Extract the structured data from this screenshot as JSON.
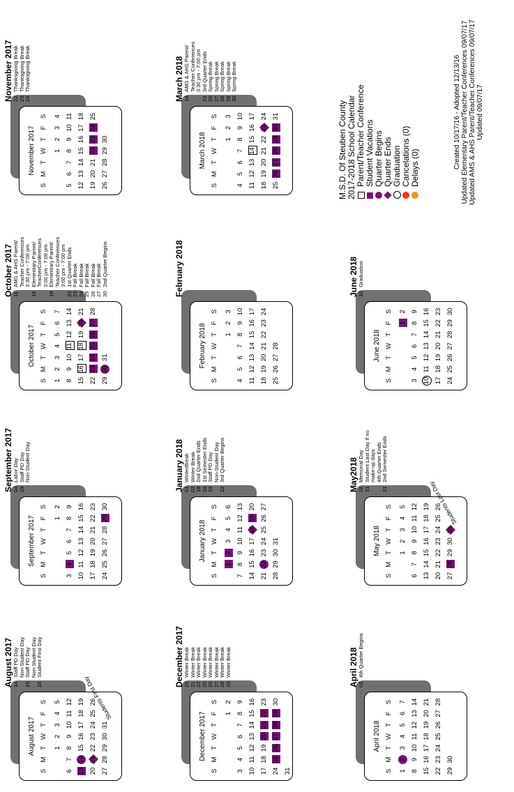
{
  "calendar": {
    "header": [
      "S",
      "M",
      "T",
      "W",
      "T",
      "F",
      "S"
    ],
    "months": [
      {
        "title": "August 2017",
        "event_title": "August 2017",
        "start": 2,
        "days": 31,
        "marks": {
          "13": "sq",
          "14": "ci",
          "21": "dm"
        },
        "rot_label": "Students First Day",
        "events": [
          {
            "d": "14",
            "t": "Staff PD Day"
          },
          {
            "d": "",
            "t": "Non-Student Day"
          },
          {
            "d": "15",
            "t": "Staff PD Day"
          },
          {
            "d": "",
            "t": "Non-Student Day"
          },
          {
            "d": "16",
            "t": "Student First Day"
          }
        ]
      },
      {
        "title": "September 2017",
        "event_title": "September 2017",
        "start": 5,
        "days": 30,
        "marks": {
          "4": "sq",
          "29": "sq"
        },
        "events": [
          {
            "d": "04",
            "t": "Labor Day"
          },
          {
            "d": "29",
            "t": "Staff PD Day"
          },
          {
            "d": "",
            "t": "Non-Student Day"
          }
        ]
      },
      {
        "title": "October 2017",
        "event_title": "October 2017",
        "start": 0,
        "days": 31,
        "marks": {
          "11": "bx",
          "16": "bx",
          "18": "bx",
          "20": "dm",
          "23": "sq",
          "24": "sq",
          "25": "sq",
          "26": "sq",
          "27": "sq",
          "30": "ci"
        },
        "events": [
          {
            "d": "11",
            "t": "AMS & AHS Parent/"
          },
          {
            "d": "",
            "t": "Teacher Conferences"
          },
          {
            "d": "",
            "t": "3:30 pm - 7:00 pm"
          },
          {
            "d": "16",
            "t": "Elementary Parent/"
          },
          {
            "d": "",
            "t": "TeacherConferences"
          },
          {
            "d": "",
            "t": "3:00 pm - 7:00 pm"
          },
          {
            "d": "18",
            "t": "Elementary Parent/"
          },
          {
            "d": "",
            "t": "Teacher Conferences"
          },
          {
            "d": "",
            "t": "3:00 pm - 7:00 pm"
          },
          {
            "d": "20",
            "t": "1st Quarter Ends"
          },
          {
            "d": "23",
            "t": "Fall Break"
          },
          {
            "d": "24",
            "t": "Fall Break"
          },
          {
            "d": "25",
            "t": "Fall Break"
          },
          {
            "d": "26",
            "t": "Fall Break"
          },
          {
            "d": "27",
            "t": "Fall Break"
          },
          {
            "d": "30",
            "t": "2nd Quarter Begins"
          }
        ]
      },
      {
        "title": "November 2017",
        "event_title": "November 2017",
        "start": 3,
        "days": 30,
        "marks": {
          "22": "sq",
          "23": "sq",
          "24": "sq"
        },
        "events": [
          {
            "d": "22",
            "t": "Thanksgiving Break"
          },
          {
            "d": "23",
            "t": "Thanksgiving Break"
          },
          {
            "d": "24",
            "t": "Thanksgiving Break"
          }
        ]
      },
      {
        "title": "December 2017",
        "event_title": "December 2017",
        "start": 5,
        "days": 31,
        "marks": {
          "20": "sq",
          "21": "sq",
          "22": "sq",
          "25": "sq",
          "26": "sq",
          "27": "sq",
          "28": "sq",
          "29": "sq"
        },
        "events": [
          {
            "d": "20",
            "t": "Winter Break"
          },
          {
            "d": "21",
            "t": "Winter Break"
          },
          {
            "d": "22",
            "t": "Winter Break"
          },
          {
            "d": "25",
            "t": "Winter Break"
          },
          {
            "d": "26",
            "t": "Winter Break"
          },
          {
            "d": "27",
            "t": "Winter Break"
          },
          {
            "d": "28",
            "t": "Winter Break"
          },
          {
            "d": "29",
            "t": "Winter Break"
          }
        ]
      },
      {
        "title": "January 2018",
        "event_title": "January 2018",
        "start": 1,
        "days": 31,
        "marks": {
          "1": "sq",
          "2": "sq",
          "18": "dm",
          "19": "sq",
          "22": "ci"
        },
        "events": [
          {
            "d": "01",
            "t": "WinterBreak"
          },
          {
            "d": "02",
            "t": "Winter Break"
          },
          {
            "d": "18",
            "t": "2nd Quarter Ends"
          },
          {
            "d": "18",
            "t": "1st Semester Ends"
          },
          {
            "d": "19",
            "t": "Staff PD Day"
          },
          {
            "d": "",
            "t": "Non-Student Day"
          },
          {
            "d": "22",
            "t": "3rd Quarter Begins"
          }
        ]
      },
      {
        "title": "February 2018",
        "event_title": "February 2018",
        "start": 4,
        "days": 28,
        "marks": {},
        "events": []
      },
      {
        "title": "March 2018",
        "event_title": "March 2018",
        "start": 4,
        "days": 31,
        "marks": {
          "14": "bx",
          "23": "dm",
          "26": "sq",
          "27": "sq",
          "28": "sq",
          "29": "sq",
          "30": "sq"
        },
        "events": [
          {
            "d": "14",
            "t": "AMS & AHS Parent/"
          },
          {
            "d": "",
            "t": "Teacher Conferences"
          },
          {
            "d": "",
            "t": "3:30 pm - 7:00 pm"
          },
          {
            "d": "23",
            "t": "3rd Quarter Ends"
          },
          {
            "d": "26",
            "t": "Spring Break"
          },
          {
            "d": "27",
            "t": "Spring Break"
          },
          {
            "d": "28",
            "t": "Spring Break"
          },
          {
            "d": "29",
            "t": "Spring Break"
          },
          {
            "d": "30",
            "t": "Spring Break"
          }
        ]
      },
      {
        "title": "April 2018",
        "event_title": "April 2018",
        "start": 0,
        "days": 30,
        "marks": {
          "2": "ci"
        },
        "events": [
          {
            "d": "02",
            "t": "4th Quarter Begins"
          }
        ]
      },
      {
        "title": "May 2018",
        "event_title": "May2018",
        "start": 2,
        "days": 31,
        "marks": {
          "28": "sq",
          "31": "dm"
        },
        "rot_label": "Students Last Day",
        "events": [
          {
            "d": "28",
            "t": "Memorial Day"
          },
          {
            "d": "31",
            "t": "Student Last Day if no"
          },
          {
            "d": "",
            "t": "make-up days"
          },
          {
            "d": "",
            "t": "4th Quarter Ends"
          },
          {
            "d": "31",
            "t": "2nd Semester Ends"
          }
        ]
      },
      {
        "title": "June 2018",
        "event_title": "June 2018",
        "start": 5,
        "days": 30,
        "marks": {
          "1": "sq",
          "10": "oc"
        },
        "events": [
          {
            "d": "10",
            "t": "Graduation"
          }
        ]
      }
    ]
  },
  "legend": {
    "title1": "M.S.D. Of Steuben County",
    "title2": "2017-2018 School Calendar",
    "items": [
      {
        "syms": [
          "bx"
        ],
        "label": "Parent/Teacher Conference"
      },
      {
        "syms": [
          "sq"
        ],
        "label": "Student Vacations"
      },
      {
        "syms": [
          "ci"
        ],
        "label": "Quarter Begins"
      },
      {
        "syms": [
          "dm"
        ],
        "label": "Quarter Ends"
      },
      {
        "syms": [
          "oc"
        ],
        "label": "Graduation"
      },
      {
        "syms": [
          "rd"
        ],
        "label": "Cancelations (0)"
      },
      {
        "syms": [
          "or"
        ],
        "label": "Delays (0)"
      }
    ],
    "colors": {
      "purple": "#7a0f7a",
      "red": "#ff2d12",
      "orange": "#ff8c1a"
    }
  },
  "credits": [
    "Created 10/17/16 - Adopted 12/13/16",
    "Updated Elementary Parent/Teacher Conferences 09/07/17",
    "Updated AMS & AHS Parent/Teacher Conferences 09/07/17",
    "Updated 09/07/17"
  ]
}
